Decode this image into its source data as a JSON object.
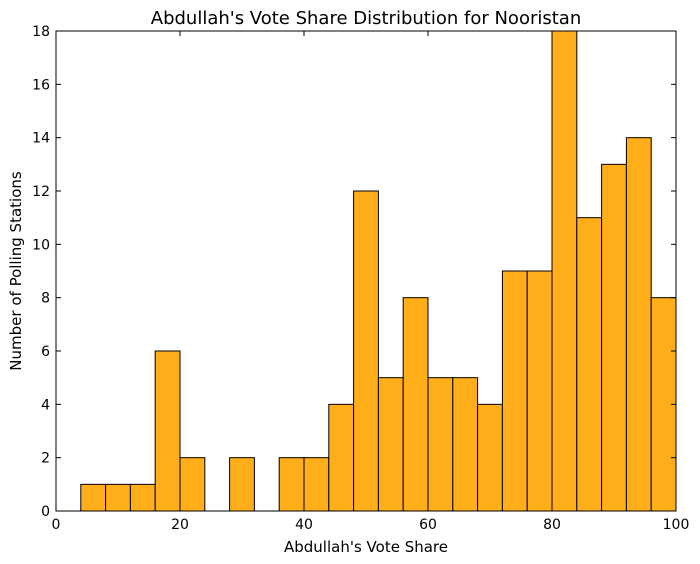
{
  "chart_data": {
    "type": "bar",
    "title": "Abdullah's Vote Share Distribution for Nooristan",
    "xlabel": "Abdullah's Vote Share",
    "ylabel": "Number of Polling Stations",
    "xlim": [
      0,
      100
    ],
    "ylim": [
      0,
      18
    ],
    "xticks": [
      0,
      20,
      40,
      60,
      80,
      100
    ],
    "yticks": [
      0,
      2,
      4,
      6,
      8,
      10,
      12,
      14,
      16,
      18
    ],
    "bin_width": 4,
    "bin_edges": [
      0,
      4,
      8,
      12,
      16,
      20,
      24,
      28,
      32,
      36,
      40,
      44,
      48,
      52,
      56,
      60,
      64,
      68,
      72,
      76,
      80,
      84,
      88,
      92,
      96,
      100
    ],
    "values": [
      0,
      1,
      1,
      1,
      6,
      2,
      0,
      2,
      0,
      2,
      2,
      4,
      12,
      5,
      8,
      5,
      5,
      4,
      9,
      9,
      18,
      11,
      13,
      14,
      8
    ],
    "grid": false,
    "bar_color": "#ffae1a",
    "edge_color": "#000000"
  }
}
